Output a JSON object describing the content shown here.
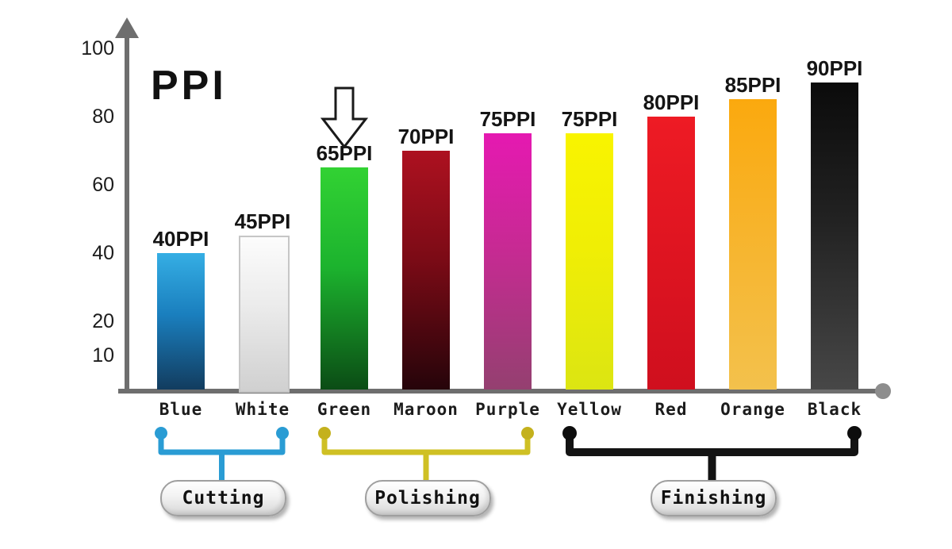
{
  "page": {
    "background": "#ffffff"
  },
  "chart_data": {
    "type": "bar",
    "title": "PPI",
    "xlabel": "",
    "ylabel": "",
    "ylim": [
      0,
      105
    ],
    "grid": false,
    "y_ticks": [
      100,
      80,
      60,
      40,
      20,
      10
    ],
    "axis_color": "#6e6e6e",
    "categories": [
      "Blue",
      "White",
      "Green",
      "Maroon",
      "Purple",
      "Yellow",
      "Red",
      "Orange",
      "Black"
    ],
    "values": [
      40,
      45,
      65,
      70,
      75,
      75,
      80,
      85,
      90
    ],
    "value_labels": [
      "40PPI",
      "45PPI",
      "65PPI",
      "70PPI",
      "75PPI",
      "75PPI",
      "80PPI",
      "85PPI",
      "90PPI"
    ],
    "bar_colors": [
      {
        "top": "#35aee4",
        "mid": "#1a7fbe",
        "bottom": "#123c5f",
        "border": ""
      },
      {
        "top": "#fcfcfc",
        "mid": "#ebebeb",
        "bottom": "#d0d0d0",
        "border": "#c6c6c6"
      },
      {
        "top": "#32d233",
        "mid": "#1cb32e",
        "bottom": "#0b4c15",
        "border": ""
      },
      {
        "top": "#ad1120",
        "mid": "#7c0b16",
        "bottom": "#26040a",
        "border": ""
      },
      {
        "top": "#e519b1",
        "mid": "#c72a93",
        "bottom": "#944070",
        "border": ""
      },
      {
        "top": "#f9f400",
        "mid": "#f0ee05",
        "bottom": "#dce512",
        "border": ""
      },
      {
        "top": "#ee1b24",
        "mid": "#e01521",
        "bottom": "#cf0f1e",
        "border": ""
      },
      {
        "top": "#fba90e",
        "mid": "#f7b42c",
        "bottom": "#f3c14c",
        "border": ""
      },
      {
        "top": "#0b0b0b",
        "mid": "#222222",
        "bottom": "#474747",
        "border": ""
      }
    ],
    "annotations": [
      {
        "type": "down-arrow",
        "target_category": "Green"
      }
    ],
    "groups": [
      {
        "label": "Cutting",
        "from": "Blue",
        "to": "White",
        "color": "#2a9cd4",
        "dot_color": "#2a9cd4"
      },
      {
        "label": "Polishing",
        "from": "Green",
        "to": "Purple",
        "color": "#cfc024",
        "dot_color": "#c4b11d"
      },
      {
        "label": "Finishing",
        "from": "Yellow",
        "to": "Black",
        "color": "#131313",
        "dot_color": "#0d0d0d"
      }
    ]
  }
}
